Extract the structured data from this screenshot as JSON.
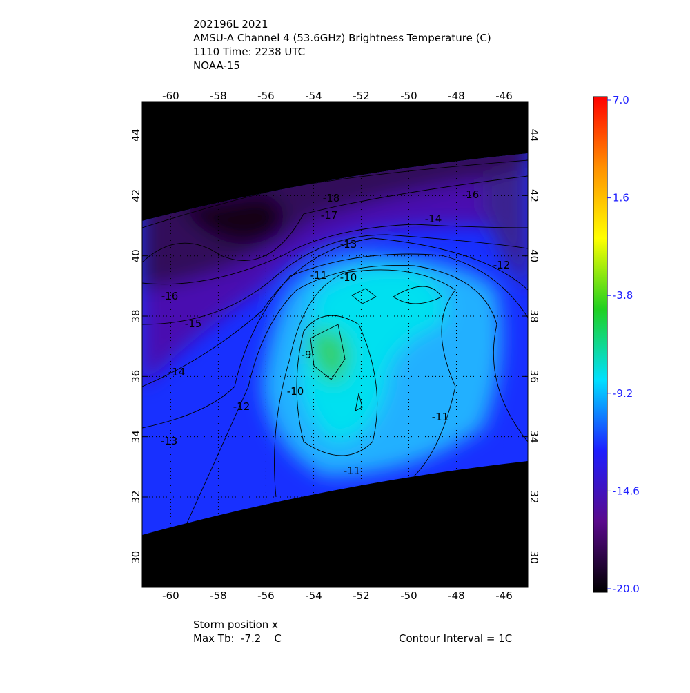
{
  "chart_data": {
    "type": "heatmap",
    "title_lines": [
      "202196L 2021",
      "AMSU-A Channel 4 (53.6GHz) Brightness Temperature (C)",
      "1110 Time: 2238 UTC",
      "NOAA-15"
    ],
    "xlim": [
      -61.2,
      -45
    ],
    "xticks": [
      -60,
      -58,
      -56,
      -54,
      -52,
      -50,
      -48,
      -46
    ],
    "ylim": [
      29,
      45.1
    ],
    "yticks": [
      30,
      32,
      34,
      36,
      38,
      40,
      42,
      44
    ],
    "grid": true,
    "colorbar_lim": [
      -20,
      7
    ],
    "colorbar_ticks": [
      {
        "value": 7,
        "label": "7.0"
      },
      1.6,
      -3.8,
      -9.2,
      -14.6,
      {
        "value": -20,
        "label": "-20.0"
      }
    ],
    "colormap": [
      "#000000",
      "#5a0a8c",
      "#1e1eff",
      "#00e0ff",
      "#20d020",
      "#ffff00",
      "#ff9000",
      "#ff0000"
    ],
    "contour_labels": [
      -18,
      -17,
      -16,
      -14,
      -13,
      -12,
      -11,
      -10,
      -16,
      -15,
      -9,
      -14,
      -10,
      -12,
      -11,
      -13,
      -11
    ],
    "footer": {
      "storm": "Storm position x",
      "max_tb": "Max Tb:  -7.2    C",
      "interval": "Contour Interval = 1C"
    }
  }
}
